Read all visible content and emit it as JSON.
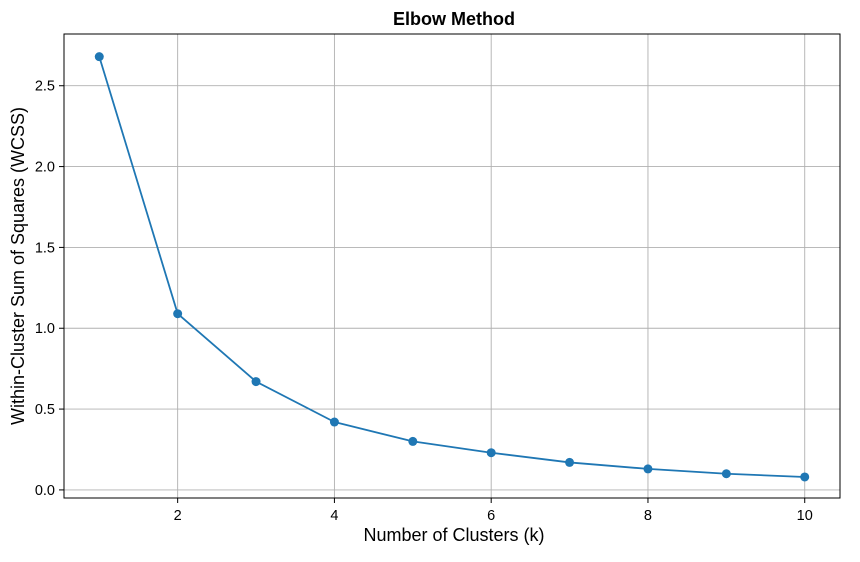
{
  "chart_data": {
    "type": "line",
    "title": "Elbow Method",
    "xlabel": "Number of Clusters (k)",
    "ylabel": "Within-Cluster Sum of Squares (WCSS)",
    "x": [
      1,
      2,
      3,
      4,
      5,
      6,
      7,
      8,
      9,
      10
    ],
    "series": [
      {
        "values": [
          2.68,
          1.09,
          0.67,
          0.42,
          0.3,
          0.23,
          0.17,
          0.13,
          0.1,
          0.08
        ],
        "color": "#1f77b4",
        "marker": "circle"
      }
    ],
    "xlim": [
      0.55,
      10.45
    ],
    "ylim": [
      -0.05,
      2.82
    ],
    "xticks": [
      2,
      4,
      6,
      8,
      10
    ],
    "xtick_labels": [
      "2",
      "4",
      "6",
      "8",
      "10"
    ],
    "yticks": [
      0.0,
      0.5,
      1.0,
      1.5,
      2.0,
      2.5
    ],
    "ytick_labels": [
      "0.0",
      "0.5",
      "1.0",
      "1.5",
      "2.0",
      "2.5"
    ],
    "grid": true,
    "grid_color": "#b0b0b0",
    "axis_color": "#000000"
  }
}
